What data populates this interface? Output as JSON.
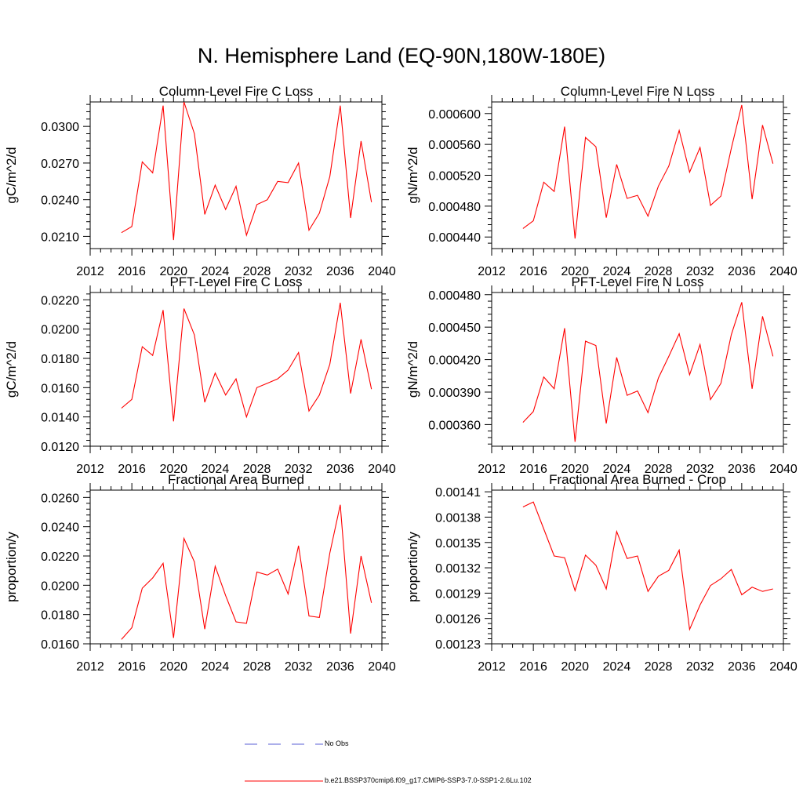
{
  "title": "N. Hemisphere Land (EQ-90N,180W-180E)",
  "legend": {
    "obs_label": "No Obs",
    "model_label": "b.e21.BSSP370cmip6.f09_g17.CMIP6-SSP3-7.0-SSP1-2.6Lu.102",
    "obs_color": "#5a5fd6",
    "model_color": "#ff0000"
  },
  "chart_data": [
    {
      "type": "line",
      "title": "Column-Level Fire C Loss",
      "ylabel": "gC/m^2/d",
      "xlim": [
        2012,
        2040
      ],
      "xticks": [
        "2012",
        "2016",
        "2020",
        "2024",
        "2028",
        "2032",
        "2036",
        "2040"
      ],
      "ylim": [
        0.02,
        0.032
      ],
      "yticks": [
        "0.0210",
        "0.0240",
        "0.0270",
        "0.0300"
      ],
      "x": [
        2015,
        2016,
        2017,
        2018,
        2019,
        2020,
        2021,
        2022,
        2023,
        2024,
        2025,
        2026,
        2027,
        2028,
        2029,
        2030,
        2031,
        2032,
        2033,
        2034,
        2035,
        2036,
        2037,
        2038,
        2039
      ],
      "series": [
        {
          "values": [
            0.0213,
            0.0218,
            0.0271,
            0.0262,
            0.0317,
            0.0207,
            0.032,
            0.0294,
            0.0228,
            0.0252,
            0.0232,
            0.0251,
            0.0211,
            0.0236,
            0.024,
            0.0255,
            0.0254,
            0.027,
            0.0215,
            0.0229,
            0.0259,
            0.0317,
            0.0225,
            0.0288,
            0.0238
          ],
          "color": "#ff0000"
        }
      ]
    },
    {
      "type": "line",
      "title": "Column-Level Fire N Loss",
      "ylabel": "gN/m^2/d",
      "xlim": [
        2012,
        2040
      ],
      "xticks": [
        "2012",
        "2016",
        "2020",
        "2024",
        "2028",
        "2032",
        "2036",
        "2040"
      ],
      "ylim": [
        0.000425,
        0.000615
      ],
      "yticks": [
        "0.000440",
        "0.000480",
        "0.000520",
        "0.000560",
        "0.000600"
      ],
      "x": [
        2015,
        2016,
        2017,
        2018,
        2019,
        2020,
        2021,
        2022,
        2023,
        2024,
        2025,
        2026,
        2027,
        2028,
        2029,
        2030,
        2031,
        2032,
        2033,
        2034,
        2035,
        2036,
        2037,
        2038,
        2039
      ],
      "series": [
        {
          "values": [
            0.000451,
            0.000461,
            0.000511,
            0.000499,
            0.000583,
            0.000438,
            0.000569,
            0.000557,
            0.000465,
            0.000534,
            0.00049,
            0.000494,
            0.000467,
            0.000506,
            0.000532,
            0.000578,
            0.000524,
            0.000556,
            0.000481,
            0.000493,
            0.000555,
            0.000611,
            0.000489,
            0.000585,
            0.000535
          ],
          "color": "#ff0000"
        }
      ]
    },
    {
      "type": "line",
      "title": "PFT-Level Fire C Loss",
      "ylabel": "gC/m^2/d",
      "xlim": [
        2012,
        2040
      ],
      "xticks": [
        "2012",
        "2016",
        "2020",
        "2024",
        "2028",
        "2032",
        "2036",
        "2040"
      ],
      "ylim": [
        0.012,
        0.0225
      ],
      "yticks": [
        "0.0120",
        "0.0140",
        "0.0160",
        "0.0180",
        "0.0200",
        "0.0220"
      ],
      "x": [
        2015,
        2016,
        2017,
        2018,
        2019,
        2020,
        2021,
        2022,
        2023,
        2024,
        2025,
        2026,
        2027,
        2028,
        2029,
        2030,
        2031,
        2032,
        2033,
        2034,
        2035,
        2036,
        2037,
        2038,
        2039
      ],
      "series": [
        {
          "values": [
            0.0146,
            0.0152,
            0.0188,
            0.0182,
            0.0213,
            0.0137,
            0.0214,
            0.0196,
            0.015,
            0.017,
            0.0155,
            0.0166,
            0.014,
            0.016,
            0.0163,
            0.0166,
            0.0172,
            0.0184,
            0.0144,
            0.0155,
            0.0176,
            0.0218,
            0.0156,
            0.0193,
            0.0159
          ],
          "color": "#ff0000"
        }
      ]
    },
    {
      "type": "line",
      "title": "PFT-Level Fire N Loss",
      "ylabel": "gN/m^2/d",
      "xlim": [
        2012,
        2040
      ],
      "xticks": [
        "2012",
        "2016",
        "2020",
        "2024",
        "2028",
        "2032",
        "2036",
        "2040"
      ],
      "ylim": [
        0.00034,
        0.000482
      ],
      "yticks": [
        "0.000360",
        "0.000390",
        "0.000420",
        "0.000450",
        "0.000480"
      ],
      "x": [
        2015,
        2016,
        2017,
        2018,
        2019,
        2020,
        2021,
        2022,
        2023,
        2024,
        2025,
        2026,
        2027,
        2028,
        2029,
        2030,
        2031,
        2032,
        2033,
        2034,
        2035,
        2036,
        2037,
        2038,
        2039
      ],
      "series": [
        {
          "values": [
            0.000362,
            0.000372,
            0.000404,
            0.000393,
            0.000449,
            0.000344,
            0.000437,
            0.000433,
            0.000361,
            0.000422,
            0.000387,
            0.000391,
            0.000371,
            0.000403,
            0.000423,
            0.000444,
            0.000406,
            0.000434,
            0.000383,
            0.000398,
            0.000443,
            0.000473,
            0.000393,
            0.00046,
            0.000423
          ],
          "color": "#ff0000"
        }
      ]
    },
    {
      "type": "line",
      "title": "Fractional Area Burned",
      "ylabel": "proportion/y",
      "xlim": [
        2012,
        2040
      ],
      "xticks": [
        "2012",
        "2016",
        "2020",
        "2024",
        "2028",
        "2032",
        "2036",
        "2040"
      ],
      "ylim": [
        0.016,
        0.0265
      ],
      "yticks": [
        "0.0160",
        "0.0180",
        "0.0200",
        "0.0220",
        "0.0240",
        "0.0260"
      ],
      "x": [
        2015,
        2016,
        2017,
        2018,
        2019,
        2020,
        2021,
        2022,
        2023,
        2024,
        2025,
        2026,
        2027,
        2028,
        2029,
        2030,
        2031,
        2032,
        2033,
        2034,
        2035,
        2036,
        2037,
        2038,
        2039
      ],
      "series": [
        {
          "values": [
            0.0163,
            0.0171,
            0.0198,
            0.0205,
            0.0215,
            0.0164,
            0.0232,
            0.0216,
            0.017,
            0.0213,
            0.0193,
            0.0175,
            0.0174,
            0.0209,
            0.0207,
            0.0211,
            0.0194,
            0.0227,
            0.0179,
            0.0178,
            0.0222,
            0.0255,
            0.0167,
            0.022,
            0.0188
          ],
          "color": "#ff0000"
        }
      ]
    },
    {
      "type": "line",
      "title": "Fractional Area Burned - Crop",
      "ylabel": "proportion/y",
      "xlim": [
        2012,
        2040
      ],
      "xticks": [
        "2012",
        "2016",
        "2020",
        "2024",
        "2028",
        "2032",
        "2036",
        "2040"
      ],
      "ylim": [
        0.00123,
        0.001412
      ],
      "yticks": [
        "0.00123",
        "0.00126",
        "0.00129",
        "0.00132",
        "0.00135",
        "0.00138",
        "0.00141"
      ],
      "x": [
        2015,
        2016,
        2017,
        2018,
        2019,
        2020,
        2021,
        2022,
        2023,
        2024,
        2025,
        2026,
        2027,
        2028,
        2029,
        2030,
        2031,
        2032,
        2033,
        2034,
        2035,
        2036,
        2037,
        2038,
        2039
      ],
      "series": [
        {
          "values": [
            0.001392,
            0.001398,
            0.001366,
            0.001334,
            0.001332,
            0.001293,
            0.001335,
            0.001323,
            0.001295,
            0.001363,
            0.001331,
            0.001334,
            0.001292,
            0.00131,
            0.001317,
            0.001341,
            0.001247,
            0.001276,
            0.001299,
            0.001307,
            0.001318,
            0.001288,
            0.001297,
            0.001292,
            0.001295
          ],
          "color": "#ff0000"
        }
      ]
    }
  ]
}
